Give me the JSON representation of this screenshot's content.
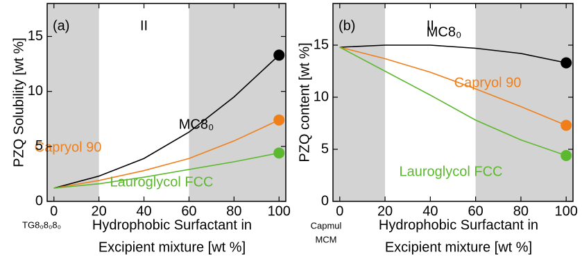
{
  "chart_data": [
    {
      "type": "line",
      "panel_label": "(a)",
      "region_label": "II",
      "region_label_x": 40,
      "shaded": [
        [
          -3,
          20
        ],
        [
          60,
          103
        ]
      ],
      "ylabel": "PZQ Solubility [wt %]",
      "xlabel": [
        "Hydrophobic Surfactant in",
        "Excipient mixture [wt %]"
      ],
      "x_origin_label": [
        "TG8₀8₀8₀"
      ],
      "x": [
        0,
        20,
        40,
        60,
        80,
        100
      ],
      "xlim": [
        -3,
        103
      ],
      "xticks": [
        0,
        20,
        40,
        60,
        80,
        100
      ],
      "ylim": [
        0,
        18
      ],
      "yticks": [
        0,
        5,
        10,
        15
      ],
      "series": [
        {
          "name": "MC8₀",
          "color": "#000000",
          "values": [
            1.2,
            2.3,
            3.9,
            6.3,
            9.5,
            13.3
          ]
        },
        {
          "name": "Capryol 90",
          "color": "#f07f1a",
          "values": [
            1.2,
            1.9,
            2.8,
            3.9,
            5.5,
            7.4
          ]
        },
        {
          "name": "Lauroglycol FCC",
          "color": "#5cb82e",
          "values": [
            1.2,
            1.6,
            2.2,
            2.9,
            3.6,
            4.4
          ]
        }
      ]
    },
    {
      "type": "line",
      "panel_label": "(b)",
      "region_label": "II",
      "region_label_x": 40,
      "shaded": [
        [
          -3,
          20
        ],
        [
          60,
          103
        ]
      ],
      "ylabel": "PZQ content [wt %]",
      "xlabel": [
        "Hydrophobic Surfactant in",
        "Excipient mixture [wt %]"
      ],
      "x_origin_label": [
        "Capmul",
        "MCM"
      ],
      "x": [
        0,
        20,
        40,
        60,
        80,
        100
      ],
      "xlim": [
        -3,
        103
      ],
      "xticks": [
        0,
        20,
        40,
        60,
        80,
        100
      ],
      "ylim": [
        0,
        19
      ],
      "yticks": [
        0,
        5,
        10,
        15
      ],
      "series": [
        {
          "name": "MC8₀",
          "color": "#000000",
          "values": [
            14.8,
            15.0,
            15.0,
            14.7,
            14.2,
            13.3
          ]
        },
        {
          "name": "Capryol 90",
          "color": "#f07f1a",
          "values": [
            14.8,
            13.7,
            12.4,
            10.8,
            9.1,
            7.3
          ]
        },
        {
          "name": "Lauroglycol FCC",
          "color": "#5cb82e",
          "values": [
            14.8,
            12.5,
            10.2,
            7.8,
            5.9,
            4.4
          ]
        }
      ]
    }
  ]
}
